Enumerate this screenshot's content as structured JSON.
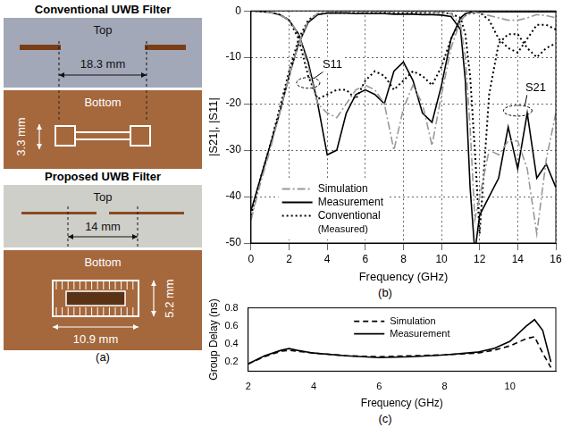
{
  "photos": {
    "label": "(a)",
    "filters": [
      {
        "title": "Conventional UWB Filter",
        "top": {
          "label": "Top",
          "dimension": "18.3 mm"
        },
        "bottom": {
          "label": "Bottom",
          "dimensions": [
            "3.3 mm"
          ]
        }
      },
      {
        "title": "Proposed UWB Filter",
        "top": {
          "label": "Top",
          "dimension": "14 mm"
        },
        "bottom": {
          "label": "Bottom",
          "dimensions": [
            "5.2 mm",
            "10.9 mm"
          ]
        }
      }
    ]
  },
  "chart_data": [
    {
      "type": "line",
      "panel": "(b)",
      "x_label": "Frequency (GHz)",
      "y_label": "|S21|, |S11|",
      "xlim": [
        0,
        16
      ],
      "xticks": [
        0,
        2,
        4,
        6,
        8,
        10,
        12,
        14,
        16
      ],
      "ylim": [
        -50,
        0
      ],
      "yticks": [
        -50,
        -40,
        -30,
        -20,
        -10,
        0
      ],
      "grid": true,
      "legend": "lower left",
      "annotations": [
        "S11",
        "S21"
      ],
      "x": [
        0,
        0.5,
        1,
        1.5,
        2,
        2.5,
        3,
        3.5,
        4,
        4.5,
        5,
        5.5,
        6,
        6.5,
        7,
        7.5,
        8,
        8.5,
        9,
        9.5,
        10,
        10.5,
        11,
        11.25,
        11.5,
        11.75,
        12,
        12.5,
        13,
        13.5,
        14,
        14.5,
        15,
        15.5,
        16
      ],
      "series": [
        {
          "name": "Simulation",
          "color": "#999999",
          "line_style": "dashdot",
          "S21": [
            -45,
            -37,
            -30,
            -22,
            -14,
            -7,
            -2.2,
            -0.5,
            -0.2,
            -0.2,
            -0.2,
            -0.2,
            -0.2,
            -0.2,
            -0.2,
            -0.2,
            -0.2,
            -0.2,
            -0.2,
            -0.3,
            -0.3,
            -0.6,
            -3,
            -10,
            -25,
            -45,
            -40,
            -30,
            -31,
            -28,
            -28,
            -34,
            -48,
            -32,
            -22
          ],
          "S11": [
            0,
            -0.1,
            -0.3,
            -0.8,
            -2,
            -5,
            -12,
            -20,
            -22,
            -23,
            -20,
            -17,
            -16,
            -17,
            -20,
            -30,
            -21,
            -16,
            -20,
            -29,
            -18,
            -8,
            -2,
            -1,
            -0.5,
            -0.3,
            -0.5,
            -1,
            -1.5,
            -2,
            -2,
            -1.5,
            -0.8,
            -1,
            -1.5
          ]
        },
        {
          "name": "Measurement",
          "color": "#000000",
          "line_style": "solid",
          "S21": [
            -43,
            -36,
            -29,
            -22,
            -14,
            -7,
            -2.5,
            -0.8,
            -0.5,
            -0.5,
            -0.5,
            -0.6,
            -0.6,
            -0.6,
            -0.6,
            -0.7,
            -0.7,
            -0.7,
            -0.8,
            -0.8,
            -0.9,
            -1.2,
            -4,
            -15,
            -38,
            -52,
            -44,
            -40,
            -36,
            -25,
            -34,
            -22,
            -36,
            -33,
            -38
          ],
          "S11": [
            0,
            -0.1,
            -0.3,
            -0.8,
            -2,
            -5,
            -11,
            -20,
            -31,
            -30,
            -22,
            -18,
            -17,
            -18,
            -20,
            -13,
            -11,
            -15,
            -22,
            -24,
            -16,
            -6,
            -1.5,
            -0.6,
            -0.3,
            -0.2,
            -0.2,
            -0.2,
            -0.2,
            -0.2,
            -0.2,
            -0.2,
            -0.2,
            -0.2,
            -0.2
          ]
        },
        {
          "name": "Conventional (Measured)",
          "color": "#000000",
          "line_style": "dotted",
          "S21": [
            -44,
            -36,
            -29,
            -21,
            -13,
            -6,
            -2,
            -0.6,
            -0.4,
            -0.4,
            -0.4,
            -0.4,
            -0.4,
            -0.4,
            -0.4,
            -0.4,
            -0.4,
            -0.4,
            -0.4,
            -0.4,
            -0.4,
            -0.6,
            -1.5,
            -5,
            -14,
            -30,
            -48,
            -18,
            -7,
            -5,
            -5,
            -8,
            -10,
            -8,
            -7
          ],
          "S11": [
            0,
            -0.1,
            -0.3,
            -0.8,
            -2,
            -6,
            -14,
            -19,
            -18,
            -17,
            -17,
            -19,
            -15,
            -13,
            -14,
            -17,
            -15,
            -13,
            -14,
            -16,
            -12,
            -6,
            -2,
            -1,
            -0.5,
            -0.5,
            -0.3,
            -2,
            -6,
            -8,
            -9,
            -6,
            -3,
            -3,
            -4
          ]
        }
      ]
    },
    {
      "type": "line",
      "panel": "(c)",
      "x_label": "Frequency (GHz)",
      "y_label": "Group Delay (ns)",
      "xlim": [
        2,
        11.4
      ],
      "xticks": [
        2,
        4,
        6,
        8,
        10
      ],
      "ylim": [
        0.1,
        0.8
      ],
      "yticks": [
        0.2,
        0.4,
        0.6,
        0.8
      ],
      "grid": false,
      "legend": "upper center",
      "x": [
        2,
        2.5,
        3,
        3.25,
        3.5,
        4,
        5,
        6,
        7,
        8,
        9,
        9.5,
        10,
        10.5,
        10.75,
        11,
        11.25
      ],
      "series": [
        {
          "name": "Simulation",
          "color": "#000000",
          "line_style": "dashed",
          "values": [
            0.18,
            0.26,
            0.32,
            0.33,
            0.32,
            0.3,
            0.27,
            0.26,
            0.27,
            0.28,
            0.3,
            0.33,
            0.38,
            0.46,
            0.48,
            0.3,
            0.14
          ]
        },
        {
          "name": "Measurement",
          "color": "#000000",
          "line_style": "solid",
          "values": [
            0.18,
            0.27,
            0.33,
            0.35,
            0.33,
            0.3,
            0.27,
            0.25,
            0.26,
            0.28,
            0.31,
            0.35,
            0.43,
            0.6,
            0.67,
            0.55,
            0.2
          ]
        }
      ]
    }
  ]
}
